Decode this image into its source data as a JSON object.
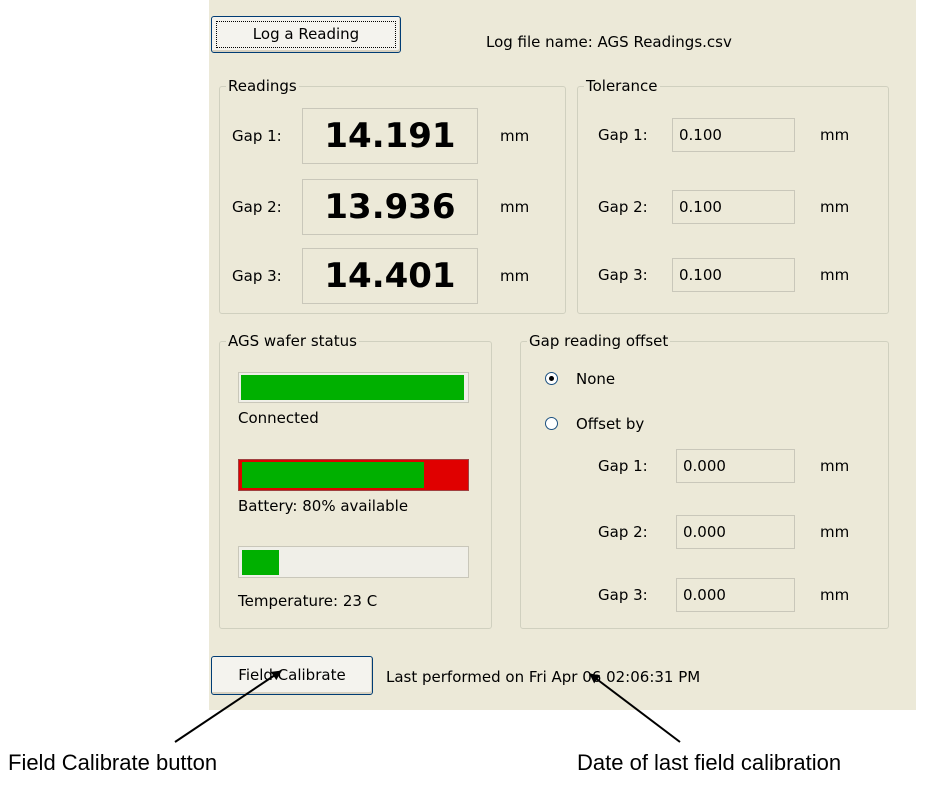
{
  "log_button": "Log a Reading",
  "log_file": "Log file name:  AGS Readings.csv",
  "readings": {
    "title": "Readings",
    "rows": [
      {
        "label": "Gap 1:",
        "value": "14.191",
        "unit": "mm"
      },
      {
        "label": "Gap 2:",
        "value": "13.936",
        "unit": "mm"
      },
      {
        "label": "Gap 3:",
        "value": "14.401",
        "unit": "mm"
      }
    ]
  },
  "tolerance": {
    "title": "Tolerance",
    "rows": [
      {
        "label": "Gap 1:",
        "value": "0.100",
        "unit": "mm"
      },
      {
        "label": "Gap 2:",
        "value": "0.100",
        "unit": "mm"
      },
      {
        "label": "Gap 3:",
        "value": "0.100",
        "unit": "mm"
      }
    ]
  },
  "wafer_status": {
    "title": "AGS wafer status",
    "items": [
      "Connected",
      "Battery: 80% available",
      "Temperature: 23 C"
    ]
  },
  "offset": {
    "title": "Gap reading offset",
    "options": [
      "None",
      "Offset by"
    ],
    "rows": [
      {
        "label": "Gap 1:",
        "value": "0.000",
        "unit": "mm"
      },
      {
        "label": "Gap 2:",
        "value": "0.000",
        "unit": "mm"
      },
      {
        "label": "Gap 3:",
        "value": "0.000",
        "unit": "mm"
      }
    ]
  },
  "calibrate_button": "Field Calibrate",
  "last_performed": "Last performed on Fri Apr 06 02:06:31 PM",
  "annotations": [
    "Field Calibrate button",
    "Date of last field calibration"
  ]
}
